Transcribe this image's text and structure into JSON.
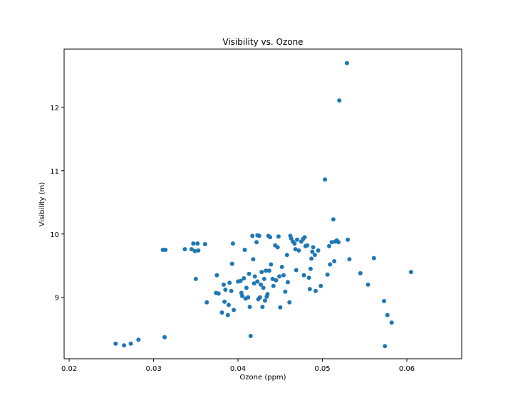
{
  "chart_data": {
    "type": "scatter",
    "title": "Visibility vs. Ozone",
    "xlabel": "Ozone (ppm)",
    "ylabel": "Visibility (m)",
    "xlim": [
      0.0194,
      0.0665
    ],
    "ylim": [
      8.03,
      12.92
    ],
    "xticks": [
      0.02,
      0.03,
      0.04,
      0.05,
      0.06
    ],
    "xtick_labels": [
      "0.02",
      "0.03",
      "0.04",
      "0.05",
      "0.06"
    ],
    "yticks": [
      9,
      10,
      11,
      12
    ],
    "ytick_labels": [
      "9",
      "10",
      "11",
      "12"
    ],
    "grid": false,
    "legend": "none",
    "marker_color": "#1f77b4",
    "points": [
      [
        0.0255,
        8.27
      ],
      [
        0.0265,
        8.24
      ],
      [
        0.0273,
        8.27
      ],
      [
        0.0282,
        8.33
      ],
      [
        0.0311,
        9.75
      ],
      [
        0.0314,
        9.75
      ],
      [
        0.0313,
        8.37
      ],
      [
        0.0337,
        9.76
      ],
      [
        0.0345,
        9.76
      ],
      [
        0.0347,
        9.85
      ],
      [
        0.0349,
        9.73
      ],
      [
        0.0352,
        9.85
      ],
      [
        0.0353,
        9.74
      ],
      [
        0.035,
        9.29
      ],
      [
        0.0361,
        9.84
      ],
      [
        0.0363,
        8.92
      ],
      [
        0.0374,
        9.07
      ],
      [
        0.0375,
        9.35
      ],
      [
        0.0377,
        9.06
      ],
      [
        0.0381,
        8.76
      ],
      [
        0.0383,
        9.2
      ],
      [
        0.0384,
        8.93
      ],
      [
        0.0385,
        9.12
      ],
      [
        0.0388,
        8.72
      ],
      [
        0.0389,
        8.88
      ],
      [
        0.039,
        9.23
      ],
      [
        0.0392,
        9.1
      ],
      [
        0.0393,
        9.53
      ],
      [
        0.0394,
        9.85
      ],
      [
        0.0395,
        8.8
      ],
      [
        0.04,
        9.25
      ],
      [
        0.0403,
        9.26
      ],
      [
        0.0404,
        9.07
      ],
      [
        0.0405,
        9.02
      ],
      [
        0.0407,
        9.3
      ],
      [
        0.0408,
        9.75
      ],
      [
        0.0409,
        8.98
      ],
      [
        0.041,
        9.15
      ],
      [
        0.0412,
        9.0
      ],
      [
        0.0413,
        9.37
      ],
      [
        0.0414,
        8.85
      ],
      [
        0.0415,
        8.39
      ],
      [
        0.0417,
        9.97
      ],
      [
        0.0418,
        9.6
      ],
      [
        0.0419,
        9.22
      ],
      [
        0.042,
        9.33
      ],
      [
        0.0422,
        9.87
      ],
      [
        0.0423,
        9.98
      ],
      [
        0.0423,
        9.25
      ],
      [
        0.0424,
        8.97
      ],
      [
        0.0425,
        9.97
      ],
      [
        0.0426,
        9.0
      ],
      [
        0.0427,
        9.2
      ],
      [
        0.0428,
        9.4
      ],
      [
        0.0429,
        8.85
      ],
      [
        0.043,
        9.15
      ],
      [
        0.0431,
        9.29
      ],
      [
        0.0432,
        8.95
      ],
      [
        0.0433,
        9.42
      ],
      [
        0.0434,
        9.01
      ],
      [
        0.0435,
        9.05
      ],
      [
        0.0436,
        9.97
      ],
      [
        0.0437,
        9.42
      ],
      [
        0.0438,
        9.95
      ],
      [
        0.0439,
        9.52
      ],
      [
        0.0441,
        9.29
      ],
      [
        0.0442,
        9.18
      ],
      [
        0.0444,
        9.82
      ],
      [
        0.0445,
        9.27
      ],
      [
        0.0447,
        9.79
      ],
      [
        0.0448,
        9.96
      ],
      [
        0.0449,
        9.33
      ],
      [
        0.045,
        8.84
      ],
      [
        0.0452,
        9.48
      ],
      [
        0.0454,
        9.35
      ],
      [
        0.0456,
        9.09
      ],
      [
        0.0458,
        9.67
      ],
      [
        0.0459,
        9.24
      ],
      [
        0.0461,
        8.92
      ],
      [
        0.0462,
        9.97
      ],
      [
        0.0463,
        9.93
      ],
      [
        0.0465,
        9.88
      ],
      [
        0.0467,
        9.85
      ],
      [
        0.0468,
        9.76
      ],
      [
        0.0469,
        9.43
      ],
      [
        0.047,
        9.91
      ],
      [
        0.0472,
        9.74
      ],
      [
        0.0475,
        9.88
      ],
      [
        0.0477,
        9.92
      ],
      [
        0.0478,
        9.35
      ],
      [
        0.0479,
        9.95
      ],
      [
        0.048,
        9.81
      ],
      [
        0.0482,
        9.82
      ],
      [
        0.0484,
        9.31
      ],
      [
        0.0485,
        9.13
      ],
      [
        0.0486,
        9.45
      ],
      [
        0.0487,
        9.61
      ],
      [
        0.0488,
        9.72
      ],
      [
        0.0489,
        9.79
      ],
      [
        0.0491,
        9.67
      ],
      [
        0.0492,
        9.1
      ],
      [
        0.0495,
        9.74
      ],
      [
        0.0498,
        9.18
      ],
      [
        0.0503,
        10.86
      ],
      [
        0.0506,
        9.36
      ],
      [
        0.0508,
        9.81
      ],
      [
        0.0509,
        9.52
      ],
      [
        0.0511,
        9.87
      ],
      [
        0.0513,
        10.23
      ],
      [
        0.0514,
        9.57
      ],
      [
        0.0515,
        9.88
      ],
      [
        0.0517,
        9.9
      ],
      [
        0.0519,
        9.87
      ],
      [
        0.052,
        12.11
      ],
      [
        0.0529,
        12.7
      ],
      [
        0.053,
        9.91
      ],
      [
        0.0532,
        9.6
      ],
      [
        0.0545,
        9.38
      ],
      [
        0.0554,
        9.2
      ],
      [
        0.0561,
        9.62
      ],
      [
        0.0573,
        8.94
      ],
      [
        0.0574,
        8.23
      ],
      [
        0.0577,
        8.72
      ],
      [
        0.0582,
        8.6
      ],
      [
        0.0605,
        9.4
      ]
    ]
  }
}
